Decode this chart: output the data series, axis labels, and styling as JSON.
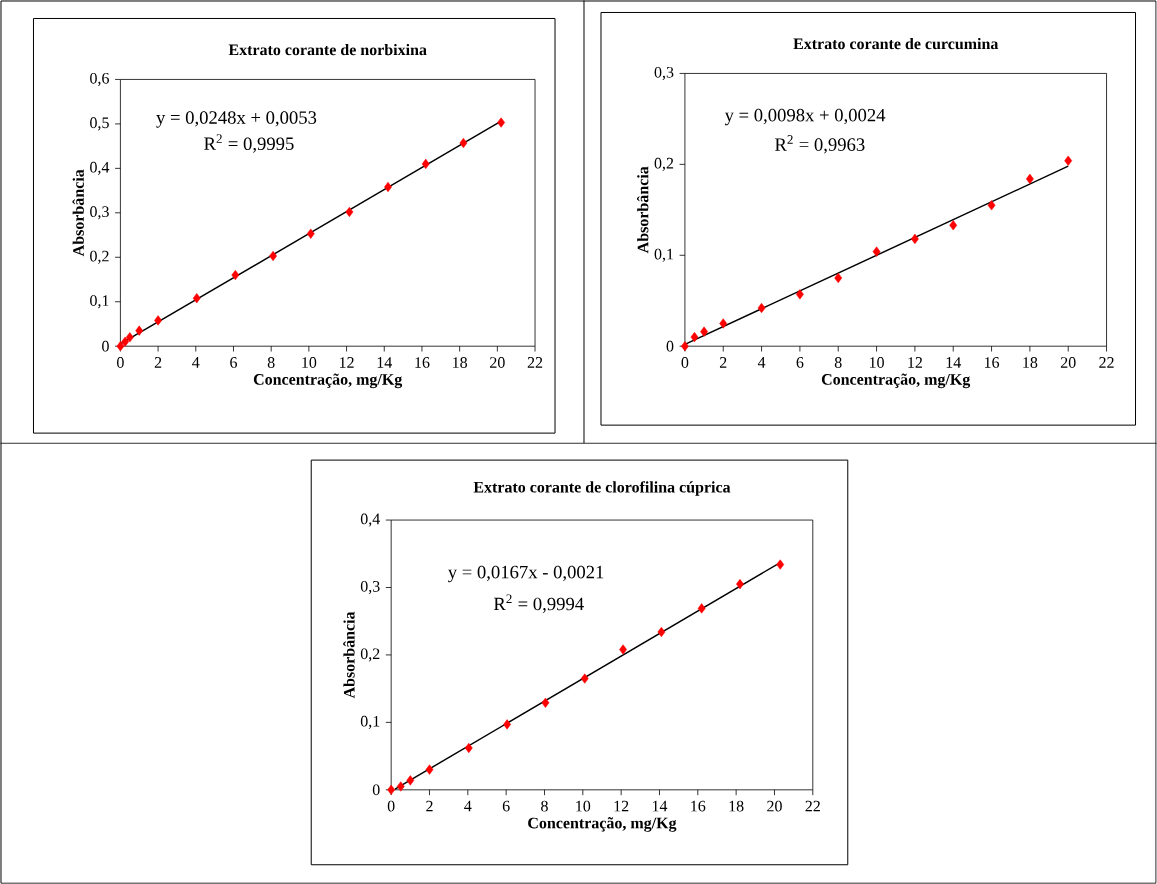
{
  "chart_data": [
    {
      "type": "scatter",
      "title": "Extrato corante de norbixina",
      "xlabel": "Concentração, mg/Kg",
      "ylabel": "Absorbância",
      "marker": "diamond",
      "xlim": [
        0,
        22
      ],
      "xticks": [
        0,
        2,
        4,
        6,
        8,
        10,
        12,
        14,
        16,
        18,
        20,
        22
      ],
      "ylim": [
        0,
        0.6
      ],
      "yticks": [
        0,
        {
          "value": 0.1,
          "label": "0,1"
        },
        {
          "value": 0.2,
          "label": "0,2"
        },
        {
          "value": 0.3,
          "label": "0,3"
        },
        {
          "value": 0.4,
          "label": "0,4"
        },
        {
          "value": 0.5,
          "label": "0,5"
        },
        {
          "value": 0.6,
          "label": "0,6"
        }
      ],
      "annotations": [
        "y = 0,0248x + 0,0053",
        "R$^{2}$ = 0,9995"
      ],
      "series": [
        {
          "type": "scatter",
          "color": "#ff0000",
          "x": [
            0,
            0.25,
            0.5,
            1,
            2,
            4.05,
            6.1,
            8.1,
            10.1,
            12.15,
            14.2,
            16.2,
            18.2,
            20.2
          ],
          "values": [
            0,
            0.01,
            0.02,
            0.035,
            0.058,
            0.108,
            0.16,
            0.203,
            0.253,
            0.302,
            0.358,
            0.41,
            0.457,
            0.503
          ]
        },
        {
          "type": "line",
          "color": "#000000",
          "marker": "none",
          "x": [
            0,
            20.2
          ],
          "values": [
            0.005,
            0.506
          ]
        }
      ]
    },
    {
      "type": "scatter",
      "title": "Extrato corante de curcumina",
      "xlabel": "Concentração, mg/Kg",
      "ylabel": "Absorbância",
      "marker": "diamond",
      "xlim": [
        0,
        22
      ],
      "xticks": [
        0,
        2,
        4,
        6,
        8,
        10,
        12,
        14,
        16,
        18,
        20,
        22
      ],
      "ylim": [
        0,
        0.3
      ],
      "yticks": [
        0,
        {
          "value": 0.1,
          "label": "0,1"
        },
        {
          "value": 0.2,
          "label": "0,2"
        },
        {
          "value": 0.3,
          "label": "0,3"
        }
      ],
      "annotations": [
        "y = 0,0098x + 0,0024",
        "R$^{2}$ = 0,9963"
      ],
      "series": [
        {
          "type": "scatter",
          "color": "#ff0000",
          "x": [
            0,
            0.5,
            1,
            2,
            4,
            6,
            8,
            10,
            12,
            14,
            16,
            18,
            20
          ],
          "values": [
            0,
            0.01,
            0.016,
            0.025,
            0.042,
            0.057,
            0.075,
            0.104,
            0.118,
            0.133,
            0.155,
            0.184,
            0.204
          ]
        },
        {
          "type": "line",
          "color": "#000000",
          "marker": "none",
          "x": [
            0,
            20
          ],
          "values": [
            0.002,
            0.198
          ]
        }
      ]
    },
    {
      "type": "scatter",
      "title": "Extrato corante de clorofilina cúprica",
      "xlabel": "Concentração, mg/Kg",
      "ylabel": "Absorbância",
      "marker": "diamond",
      "xlim": [
        0,
        22
      ],
      "xticks": [
        0,
        2,
        4,
        6,
        8,
        10,
        12,
        14,
        16,
        18,
        20,
        22
      ],
      "ylim": [
        0,
        0.4
      ],
      "yticks": [
        0,
        {
          "value": 0.1,
          "label": "0,1"
        },
        {
          "value": 0.2,
          "label": "0,2"
        },
        {
          "value": 0.3,
          "label": "0,3"
        },
        {
          "value": 0.4,
          "label": "0,4"
        }
      ],
      "annotations": [
        "y = 0,0167x - 0,0021",
        "R$^{2}$ = 0,9994"
      ],
      "series": [
        {
          "type": "scatter",
          "color": "#ff0000",
          "x": [
            0,
            0.5,
            1,
            2,
            4.05,
            6.05,
            8.05,
            10.1,
            12.1,
            14.1,
            16.2,
            18.2,
            20.3
          ],
          "values": [
            0,
            0.005,
            0.014,
            0.03,
            0.062,
            0.097,
            0.129,
            0.165,
            0.208,
            0.234,
            0.269,
            0.305,
            0.334
          ]
        },
        {
          "type": "line",
          "color": "#000000",
          "marker": "none",
          "x": [
            0.2,
            20.3
          ],
          "values": [
            0.001,
            0.337
          ]
        }
      ]
    }
  ]
}
